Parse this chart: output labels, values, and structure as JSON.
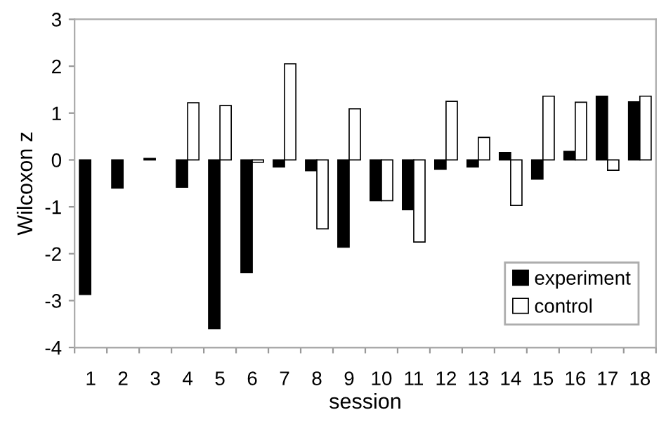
{
  "chart_data": {
    "type": "bar",
    "xlabel": "session",
    "ylabel": "Wilcoxon z",
    "categories": [
      "1",
      "2",
      "3",
      "4",
      "5",
      "6",
      "7",
      "8",
      "9",
      "10",
      "11",
      "12",
      "13",
      "14",
      "15",
      "16",
      "17",
      "18"
    ],
    "series": [
      {
        "name": "experiment",
        "color": "#000000",
        "values": [
          -2.87,
          -0.6,
          0.03,
          -0.58,
          -3.6,
          -2.4,
          -0.15,
          -0.23,
          -1.86,
          -0.87,
          -1.06,
          -0.2,
          -0.15,
          0.16,
          -0.41,
          0.18,
          1.36,
          1.24
        ]
      },
      {
        "name": "control",
        "color": "#ffffff",
        "values": [
          null,
          null,
          null,
          1.22,
          1.16,
          -0.05,
          2.05,
          -1.47,
          1.09,
          -0.87,
          -1.75,
          1.25,
          0.48,
          -0.97,
          1.36,
          1.23,
          -0.22,
          1.36
        ]
      }
    ],
    "ylim": [
      -4,
      3
    ],
    "yticks": [
      -4,
      -3,
      -2,
      -1,
      0,
      1,
      2,
      3
    ],
    "grid": false,
    "legend": "bottom right"
  }
}
